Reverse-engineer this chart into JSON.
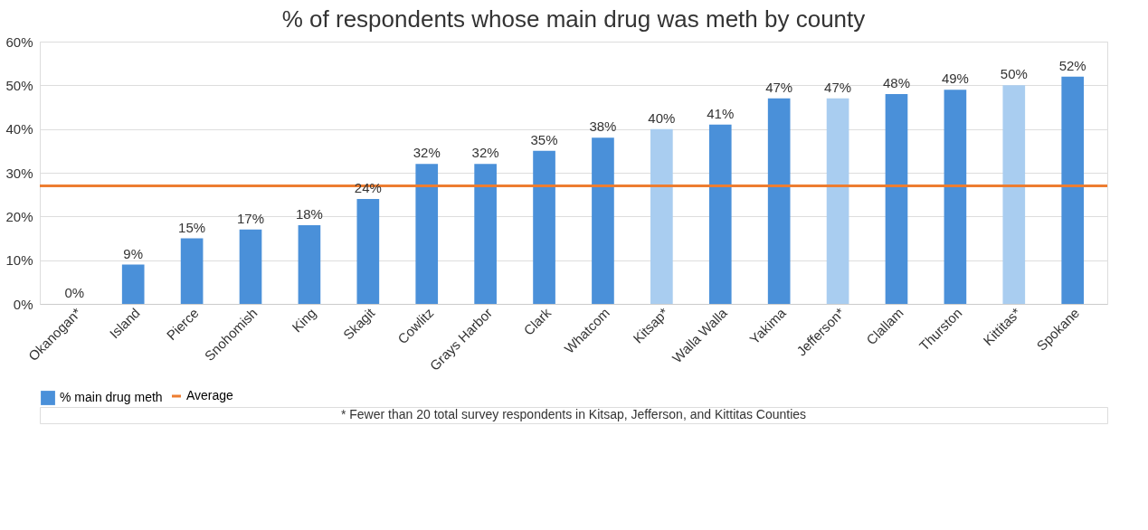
{
  "chart_data": {
    "type": "bar",
    "title": "% of respondents whose main drug was meth by county",
    "categories": [
      "Okanogan*",
      "Island",
      "Pierce",
      "Snohomish",
      "King",
      "Skagit",
      "Cowlitz",
      "Grays Harbor",
      "Clark",
      "Whatcom",
      "Kitsap*",
      "Walla Walla",
      "Yakima",
      "Jefferson*",
      "Clallam",
      "Thurston",
      "Kittitas*",
      "Spokane"
    ],
    "series": [
      {
        "name": "% main drug meth",
        "color": "#4a90d9",
        "values": [
          0,
          9,
          15,
          17,
          18,
          24,
          32,
          32,
          35,
          38,
          40,
          41,
          47,
          47,
          48,
          49,
          50,
          52
        ],
        "colors": [
          "#4a90d9",
          "#4a90d9",
          "#4a90d9",
          "#4a90d9",
          "#4a90d9",
          "#4a90d9",
          "#4a90d9",
          "#4a90d9",
          "#4a90d9",
          "#4a90d9",
          "#a9cdf0",
          "#4a90d9",
          "#4a90d9",
          "#a9cdf0",
          "#4a90d9",
          "#4a90d9",
          "#a9cdf0",
          "#4a90d9"
        ],
        "value_labels": [
          "0%",
          "9%",
          "15%",
          "17%",
          "18%",
          "24%",
          "32%",
          "32%",
          "35%",
          "38%",
          "40%",
          "41%",
          "47%",
          "47%",
          "48%",
          "49%",
          "50%",
          "52%"
        ]
      }
    ],
    "ref_lines": [
      {
        "axis": "y",
        "value": 27,
        "label": "Average",
        "color": "#ed7d31"
      }
    ],
    "ylim": [
      0,
      60
    ],
    "yticks": [
      {
        "value": 0,
        "label": "0%"
      },
      {
        "value": 10,
        "label": "10%"
      },
      {
        "value": 20,
        "label": "20%"
      },
      {
        "value": 30,
        "label": "30%"
      },
      {
        "value": 40,
        "label": "40%"
      },
      {
        "value": 50,
        "label": "50%"
      },
      {
        "value": 60,
        "label": "60%"
      }
    ],
    "grid": "y",
    "legend": "bottom",
    "annotations": [
      "* Fewer than 20 total survey respondents in Kitsap, Jefferson, and Kittitas Counties"
    ]
  }
}
